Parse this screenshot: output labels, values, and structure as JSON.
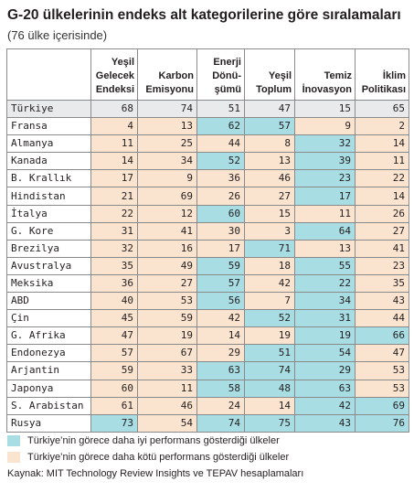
{
  "title": "G-20 ülkelerinin endeks alt kategorilerine göre sıralamaları",
  "subtitle": "(76 ülke içerisinde)",
  "columns": [
    "Yeşil Gelecek Endeksi",
    "Karbon Emisyonu",
    "Enerji Dönü-şümü",
    "Yeşil Toplum",
    "Temiz İnovasyon",
    "İklim Politikası"
  ],
  "column_lines": [
    [
      "Yeşil",
      "Gelecek",
      "Endeksi"
    ],
    [
      "Karbon",
      "Emisyonu"
    ],
    [
      "Enerji",
      "Dönü-",
      "şümü"
    ],
    [
      "Yeşil",
      "Toplum"
    ],
    [
      "Temiz",
      "İnovasyon"
    ],
    [
      "İklim",
      "Politikası"
    ]
  ],
  "rows": [
    {
      "country": "Türkiye",
      "values": [
        "68",
        "74",
        "51",
        "47",
        "15",
        "65"
      ],
      "status": [
        "n",
        "n",
        "n",
        "n",
        "n",
        "n"
      ],
      "highlight": true
    },
    {
      "country": "Fransa",
      "values": [
        "4",
        "13",
        "62",
        "57",
        "9",
        "2"
      ],
      "status": [
        "w",
        "w",
        "b",
        "b",
        "w",
        "w"
      ]
    },
    {
      "country": "Almanya",
      "values": [
        "11",
        "25",
        "44",
        "8",
        "32",
        "14"
      ],
      "status": [
        "w",
        "w",
        "w",
        "w",
        "b",
        "w"
      ]
    },
    {
      "country": "Kanada",
      "values": [
        "14",
        "34",
        "52",
        "13",
        "39",
        "11"
      ],
      "status": [
        "w",
        "w",
        "b",
        "w",
        "b",
        "w"
      ]
    },
    {
      "country": "B. Krallık",
      "values": [
        "17",
        "9",
        "36",
        "46",
        "23",
        "22"
      ],
      "status": [
        "w",
        "w",
        "w",
        "w",
        "b",
        "w"
      ]
    },
    {
      "country": "Hindistan",
      "values": [
        "21",
        "69",
        "26",
        "27",
        "17",
        "14"
      ],
      "status": [
        "w",
        "w",
        "w",
        "w",
        "b",
        "w"
      ]
    },
    {
      "country": "İtalya",
      "values": [
        "22",
        "12",
        "60",
        "15",
        "11",
        "26"
      ],
      "status": [
        "w",
        "w",
        "b",
        "w",
        "w",
        "w"
      ]
    },
    {
      "country": "G. Kore",
      "values": [
        "31",
        "41",
        "30",
        "3",
        "64",
        "27"
      ],
      "status": [
        "w",
        "w",
        "w",
        "w",
        "b",
        "w"
      ]
    },
    {
      "country": "Brezilya",
      "values": [
        "32",
        "16",
        "17",
        "71",
        "13",
        "41"
      ],
      "status": [
        "w",
        "w",
        "w",
        "b",
        "w",
        "w"
      ]
    },
    {
      "country": "Avustralya",
      "values": [
        "35",
        "49",
        "59",
        "18",
        "55",
        "23"
      ],
      "status": [
        "w",
        "w",
        "b",
        "w",
        "b",
        "w"
      ]
    },
    {
      "country": "Meksika",
      "values": [
        "36",
        "27",
        "57",
        "42",
        "22",
        "35"
      ],
      "status": [
        "w",
        "w",
        "b",
        "w",
        "b",
        "w"
      ]
    },
    {
      "country": "ABD",
      "values": [
        "40",
        "53",
        "56",
        "7",
        "34",
        "43"
      ],
      "status": [
        "w",
        "w",
        "b",
        "w",
        "b",
        "w"
      ]
    },
    {
      "country": "Çin",
      "values": [
        "45",
        "59",
        "42",
        "52",
        "31",
        "44"
      ],
      "status": [
        "w",
        "w",
        "w",
        "b",
        "b",
        "w"
      ]
    },
    {
      "country": "G. Afrika",
      "values": [
        "47",
        "19",
        "14",
        "19",
        "19",
        "66"
      ],
      "status": [
        "w",
        "w",
        "w",
        "w",
        "b",
        "b"
      ]
    },
    {
      "country": "Endonezya",
      "values": [
        "57",
        "67",
        "29",
        "51",
        "54",
        "47"
      ],
      "status": [
        "w",
        "w",
        "w",
        "b",
        "b",
        "w"
      ]
    },
    {
      "country": "Arjantin",
      "values": [
        "59",
        "33",
        "63",
        "74",
        "29",
        "53"
      ],
      "status": [
        "w",
        "w",
        "b",
        "b",
        "b",
        "w"
      ]
    },
    {
      "country": "Japonya",
      "values": [
        "60",
        "11",
        "58",
        "48",
        "63",
        "53"
      ],
      "status": [
        "w",
        "w",
        "b",
        "b",
        "b",
        "w"
      ]
    },
    {
      "country": "S. Arabistan",
      "values": [
        "61",
        "46",
        "24",
        "14",
        "42",
        "69"
      ],
      "status": [
        "w",
        "w",
        "w",
        "w",
        "b",
        "b"
      ]
    },
    {
      "country": "Rusya",
      "values": [
        "73",
        "54",
        "74",
        "75",
        "43",
        "76"
      ],
      "status": [
        "b",
        "w",
        "b",
        "b",
        "b",
        "b"
      ]
    }
  ],
  "legend": {
    "better": {
      "label": "Türkiye’nin görece daha iyi performans gösterdiği ülkeler",
      "color": "#a8dde3"
    },
    "worse": {
      "label": "Türkiye’nin görece daha kötü performans gösterdiği ülkeler",
      "color": "#fbe4cf"
    }
  },
  "source": "Kaynak: MIT Technology Review Insights ve TEPAV hesaplamaları"
}
